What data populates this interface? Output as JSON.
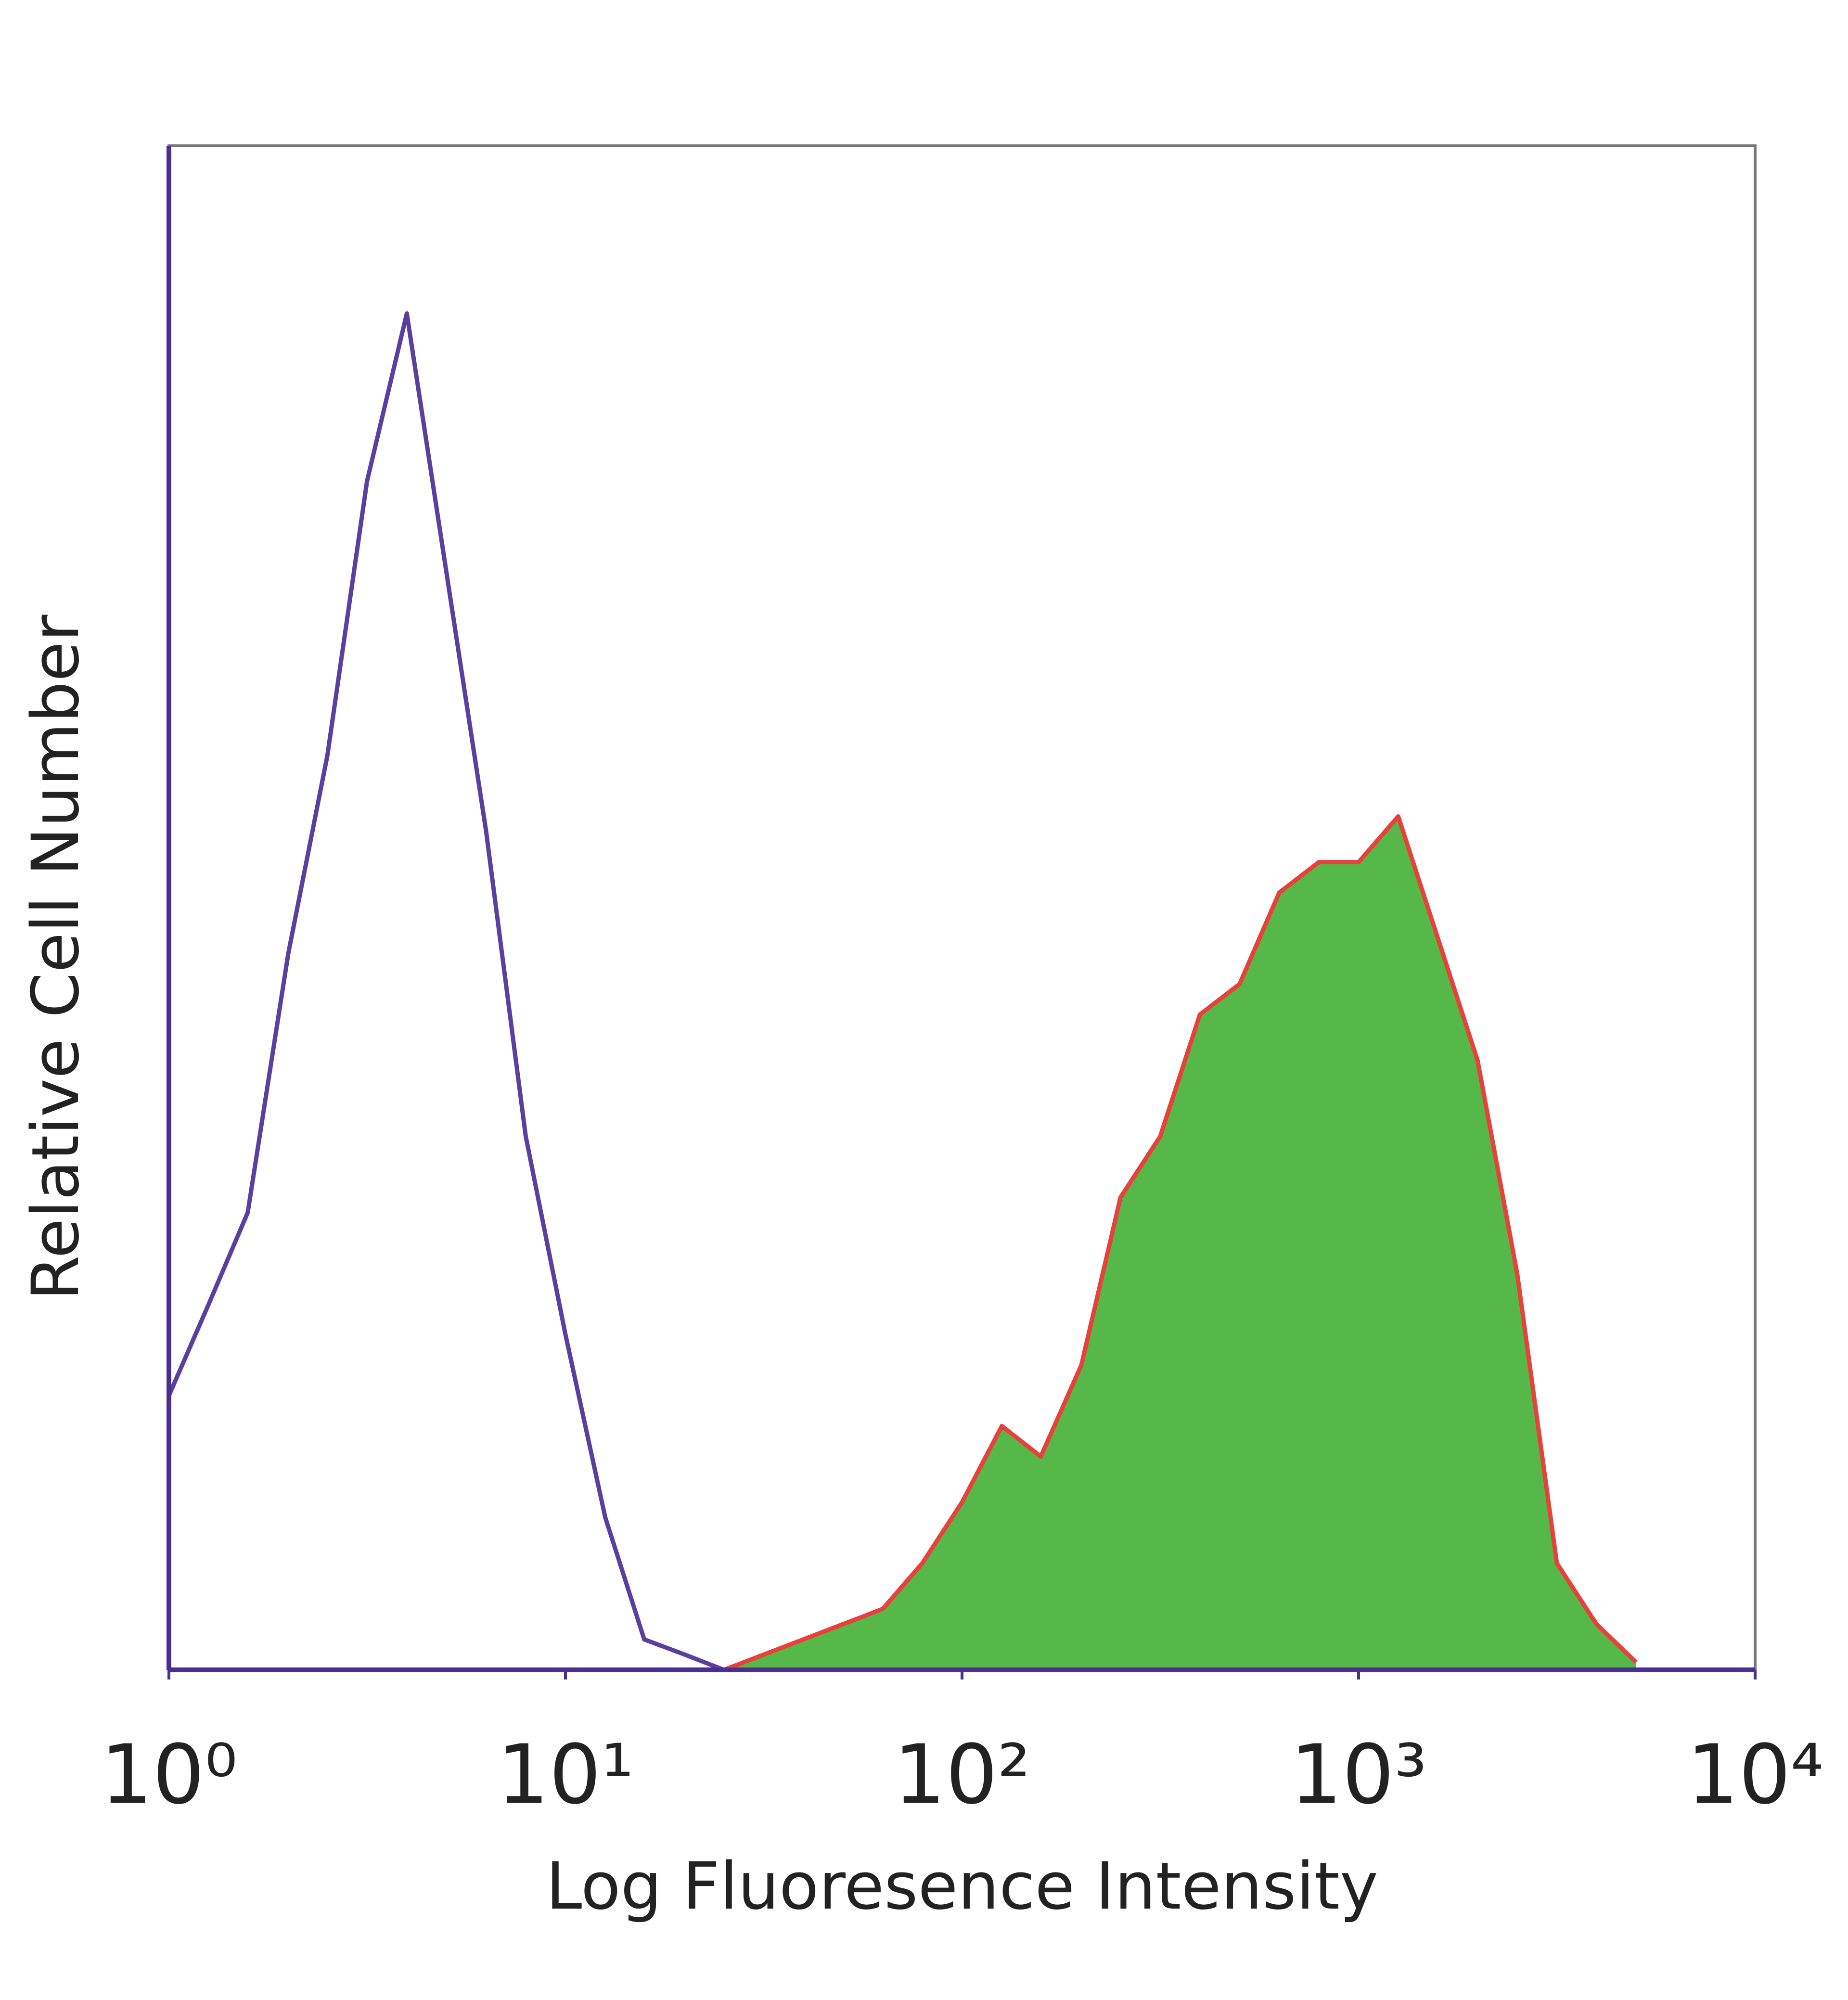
{
  "chart_data": {
    "type": "line",
    "xlabel": "Log Fluoresence Intensity",
    "ylabel": "Relative Cell Number",
    "xscale": "log",
    "xlim": [
      1,
      10000
    ],
    "xticks": [
      {
        "value": 1,
        "label": "10⁰"
      },
      {
        "value": 10,
        "label": "10¹"
      },
      {
        "value": 100,
        "label": "10²"
      },
      {
        "value": 1000,
        "label": "10³"
      },
      {
        "value": 10000,
        "label": "10⁴"
      }
    ],
    "ylim": [
      0,
      100
    ],
    "x": [
      1,
      1.26,
      1.58,
      2,
      2.51,
      3.16,
      3.98,
      5.01,
      6.31,
      7.94,
      10,
      12.6,
      15.8,
      20,
      25.1,
      31.6,
      39.8,
      50.1,
      63.1,
      79.4,
      100,
      126,
      158,
      200,
      251,
      316,
      398,
      501,
      631,
      794,
      1000,
      1259,
      1585,
      1995,
      2512,
      3162,
      3981,
      5012
    ],
    "series": [
      {
        "color": "#5b3fa0",
        "fill": false,
        "values": [
          18,
          24,
          30,
          47,
          60,
          78,
          89,
          72,
          55,
          35,
          22,
          10,
          2,
          1,
          0,
          0,
          0,
          0,
          0,
          0,
          0,
          0,
          0,
          0,
          0,
          0,
          0,
          0,
          0,
          0,
          0,
          0,
          0,
          0,
          0,
          0,
          0,
          0
        ]
      },
      {
        "color": "#e8403a",
        "fill": true,
        "fill_color": "#55b848",
        "values": [
          0,
          0,
          0,
          0,
          0,
          0,
          0,
          0,
          0,
          0,
          0,
          0,
          0,
          0,
          0,
          1,
          2,
          3,
          4,
          7,
          11,
          16,
          14,
          20,
          31,
          35,
          43,
          45,
          51,
          53,
          53,
          56,
          48,
          40,
          26,
          7,
          3,
          0.5
        ]
      }
    ]
  }
}
